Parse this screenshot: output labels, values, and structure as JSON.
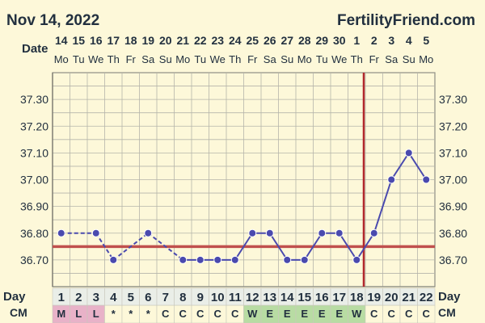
{
  "header": {
    "date_text": "Nov 14, 2022",
    "brand": "FertilityFriend.com"
  },
  "labels": {
    "date": "Date",
    "day": "Day",
    "cm": "CM"
  },
  "colors": {
    "background": "#fdf8d9",
    "line": "#4a4aae",
    "coverline": "#c0504d",
    "ovulation": "#b2282d",
    "grid": "#b5b5aa",
    "cm_menstrual": "#e8b2c8",
    "cm_fertile": "#b8dca3",
    "cm_default": "#fdf8d9"
  },
  "chart_data": {
    "type": "line",
    "dates": [
      "14",
      "15",
      "16",
      "17",
      "18",
      "19",
      "20",
      "21",
      "22",
      "23",
      "24",
      "25",
      "26",
      "27",
      "28",
      "29",
      "30",
      "1",
      "2",
      "3",
      "4",
      "5"
    ],
    "weekdays": [
      "Mo",
      "Tu",
      "We",
      "Th",
      "Fr",
      "Sa",
      "Su",
      "Mo",
      "Tu",
      "We",
      "Th",
      "Fr",
      "Sa",
      "Su",
      "Mo",
      "Tu",
      "We",
      "Th",
      "Fr",
      "Sa",
      "Su",
      "Mo"
    ],
    "days": [
      1,
      2,
      3,
      4,
      5,
      6,
      7,
      8,
      9,
      10,
      11,
      12,
      13,
      14,
      15,
      16,
      17,
      18,
      19,
      20,
      21,
      22
    ],
    "cm": [
      "M",
      "L",
      "L",
      "*",
      "*",
      "*",
      "C",
      "C",
      "C",
      "C",
      "C",
      "W",
      "E",
      "E",
      "E",
      "E",
      "E",
      "W",
      "C",
      "C",
      "C",
      "C"
    ],
    "temperatures": [
      36.8,
      null,
      36.8,
      36.7,
      null,
      36.8,
      null,
      36.7,
      36.7,
      36.7,
      36.7,
      36.8,
      36.8,
      36.7,
      36.7,
      36.8,
      36.8,
      36.7,
      36.8,
      37.0,
      37.1,
      37.0
    ],
    "dashed_segments": [
      [
        1,
        3
      ],
      [
        3,
        4
      ],
      [
        4,
        6
      ],
      [
        6,
        8
      ]
    ],
    "y_ticks": [
      "37.30",
      "37.20",
      "37.10",
      "37.00",
      "36.90",
      "36.80",
      "36.70"
    ],
    "ylim": [
      36.6,
      37.4
    ],
    "coverline": 36.75,
    "ovulation_day": 18,
    "grid": true
  }
}
